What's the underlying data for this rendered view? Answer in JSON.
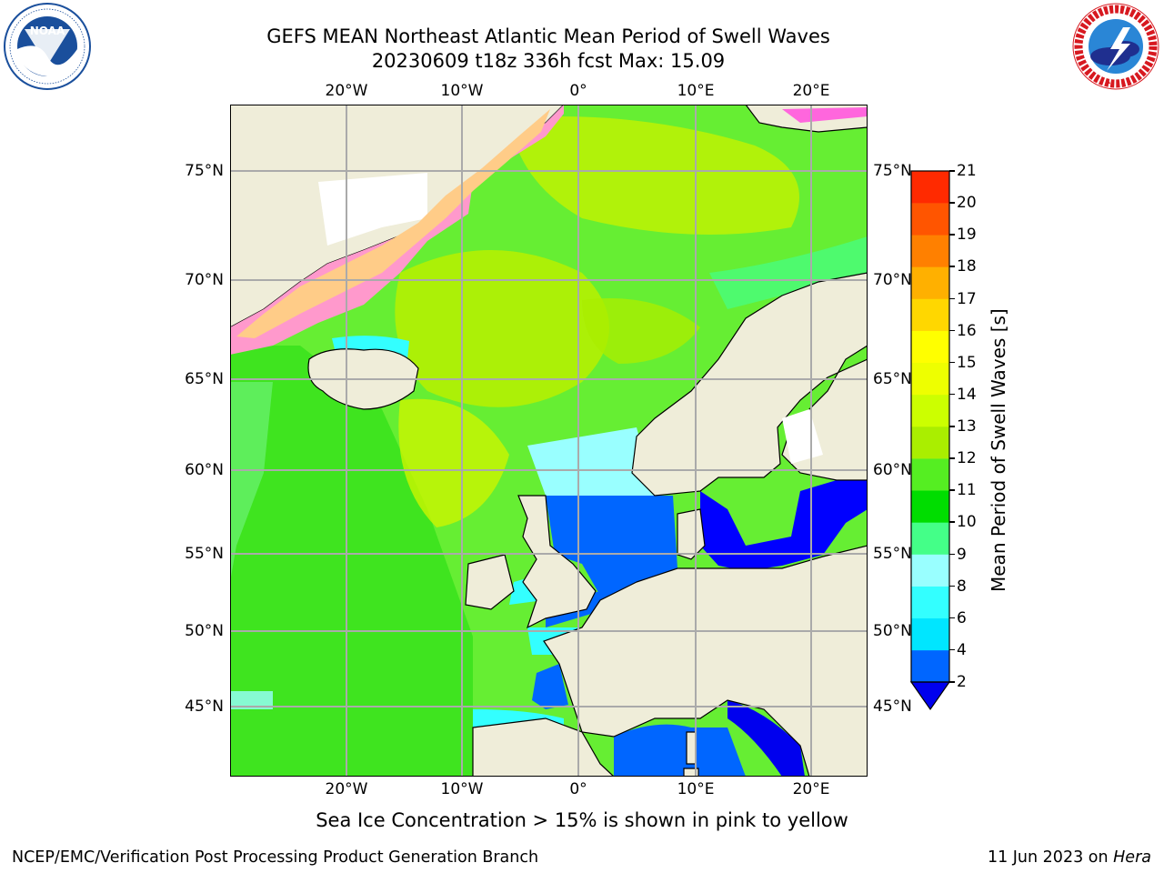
{
  "header": {
    "title_line1": "GEFS MEAN Northeast Atlantic Mean Period of Swell Waves",
    "title_line2": "20230609 t18z 336h fcst   Max: 15.09"
  },
  "logos": {
    "left": {
      "name": "NOAA",
      "ring_text": "NATIONAL OCEANIC AND ATMOSPHERIC ADMINISTRATION · U.S. DEPARTMENT OF COMMERCE",
      "color": "#1a4f9c"
    },
    "right": {
      "name": "NATIONAL WEATHER SERVICE",
      "color": "#d71920"
    }
  },
  "map": {
    "projection": "equirectangular",
    "lon_ticks": [
      "20°W",
      "10°W",
      "0°",
      "10°E",
      "20°E"
    ],
    "lat_ticks_left": [
      "75°N",
      "70°N",
      "65°N",
      "60°N",
      "55°N",
      "50°N",
      "45°N"
    ],
    "lat_ticks_right": [
      "75°N",
      "70°N",
      "65°N",
      "60°N",
      "55°N",
      "50°N",
      "45°N"
    ],
    "grid": true,
    "land_color": "#efedd9",
    "background_fill": "#66ee33"
  },
  "colorbar": {
    "label": "Mean Period of Swell Waves [s]",
    "tick_labels": [
      "2",
      "4",
      "6",
      "8",
      "9",
      "10",
      "11",
      "12",
      "13",
      "14",
      "15",
      "16",
      "17",
      "18",
      "19",
      "20",
      "21"
    ],
    "colors": [
      "#0066ff",
      "#00e6ff",
      "#33ffff",
      "#99ffff",
      "#44ff88",
      "#00dd00",
      "#55ee22",
      "#aaee00",
      "#ccff00",
      "#eeff00",
      "#ffff00",
      "#ffd700",
      "#ffb000",
      "#ff8000",
      "#ff5500",
      "#ff2a00"
    ],
    "under_color": "#0000ee"
  },
  "footnote": "Sea Ice Concentration > 15% is shown in pink to yellow",
  "footer": {
    "left": "NCEP/EMC/Verification Post Processing Product Generation Branch",
    "right_prefix": "11 Jun 2023 on ",
    "right_machine": "Hera"
  }
}
